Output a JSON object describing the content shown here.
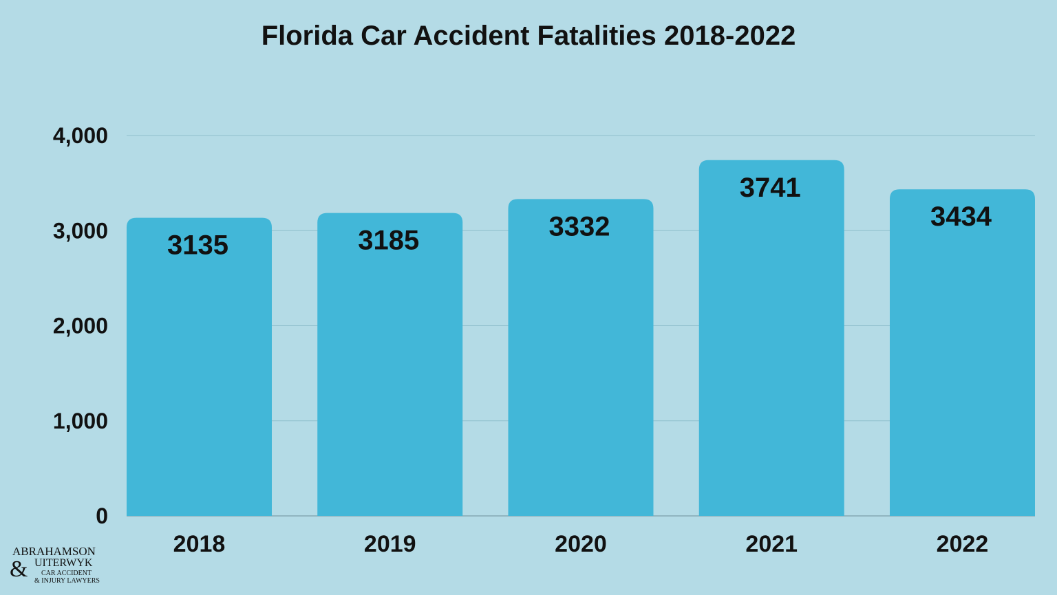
{
  "chart_data": {
    "type": "bar",
    "title": "Florida Car Accident Fatalities 2018-2022",
    "categories": [
      "2018",
      "2019",
      "2020",
      "2021",
      "2022"
    ],
    "values": [
      3135,
      3185,
      3332,
      3741,
      3434
    ],
    "data_labels": [
      "3135",
      "3185",
      "3332",
      "3741",
      "3434"
    ],
    "yticks": [
      0,
      1000,
      2000,
      3000,
      4000
    ],
    "ytick_labels": [
      "0",
      "1,000",
      "2,000",
      "3,000",
      "4,000"
    ],
    "ylim": [
      0,
      4000
    ],
    "xlabel": "",
    "ylabel": "",
    "grid": true,
    "colors": {
      "bar": "#42b7d8",
      "background": "#b4dbe6",
      "grid": "#8fbfcc",
      "text": "#111111"
    }
  },
  "logo": {
    "line1": "ABRAHAMSON",
    "ampersand": "&",
    "line2": "UITERWYK",
    "line3": "CAR ACCIDENT",
    "line4": "& INJURY LAWYERS"
  }
}
